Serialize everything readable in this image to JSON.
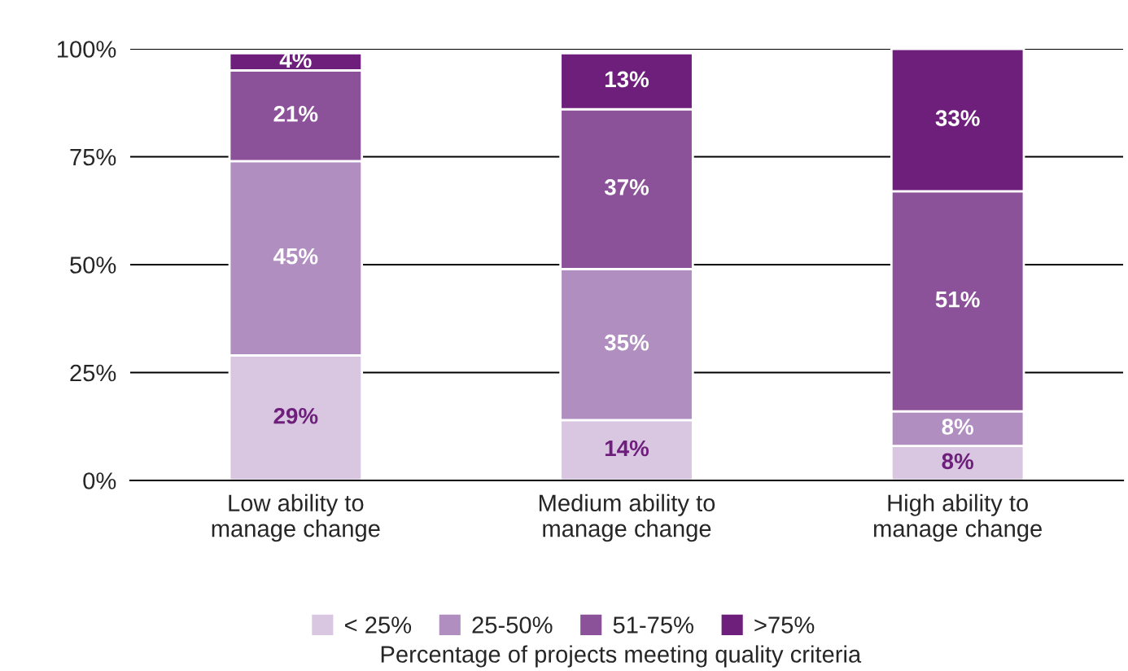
{
  "chart_data": {
    "type": "bar",
    "stacked": true,
    "categories": [
      "Low ability to\nmanage change",
      "Medium ability to\nmanage change",
      "High ability to\nmanage change"
    ],
    "xlabel": "Percentage of projects meeting quality criteria",
    "series": [
      {
        "name": "< 25%",
        "color": "#d9c7e1",
        "values": [
          29,
          14,
          8
        ],
        "value_labels": [
          "29%",
          "14%",
          "8%"
        ]
      },
      {
        "name": "25-50%",
        "color": "#b08fc0",
        "values": [
          45,
          35,
          8
        ],
        "value_labels": [
          "45%",
          "35%",
          "8%"
        ]
      },
      {
        "name": "51-75%",
        "color": "#8c5299",
        "values": [
          21,
          37,
          51
        ],
        "value_labels": [
          "21%",
          "37%",
          "51%"
        ]
      },
      {
        "name": ">75%",
        "color": "#6e1f7c",
        "values": [
          4,
          13,
          33
        ],
        "value_labels": [
          "4%",
          "13%",
          "33%"
        ]
      }
    ],
    "ylim": [
      0,
      100
    ],
    "yticks": [
      {
        "value": 0,
        "label": "0%"
      },
      {
        "value": 25,
        "label": "25%"
      },
      {
        "value": 50,
        "label": "50%"
      },
      {
        "value": 75,
        "label": "75%"
      },
      {
        "value": 100,
        "label": "100%"
      }
    ],
    "grid": "y",
    "legend": "bottom"
  }
}
